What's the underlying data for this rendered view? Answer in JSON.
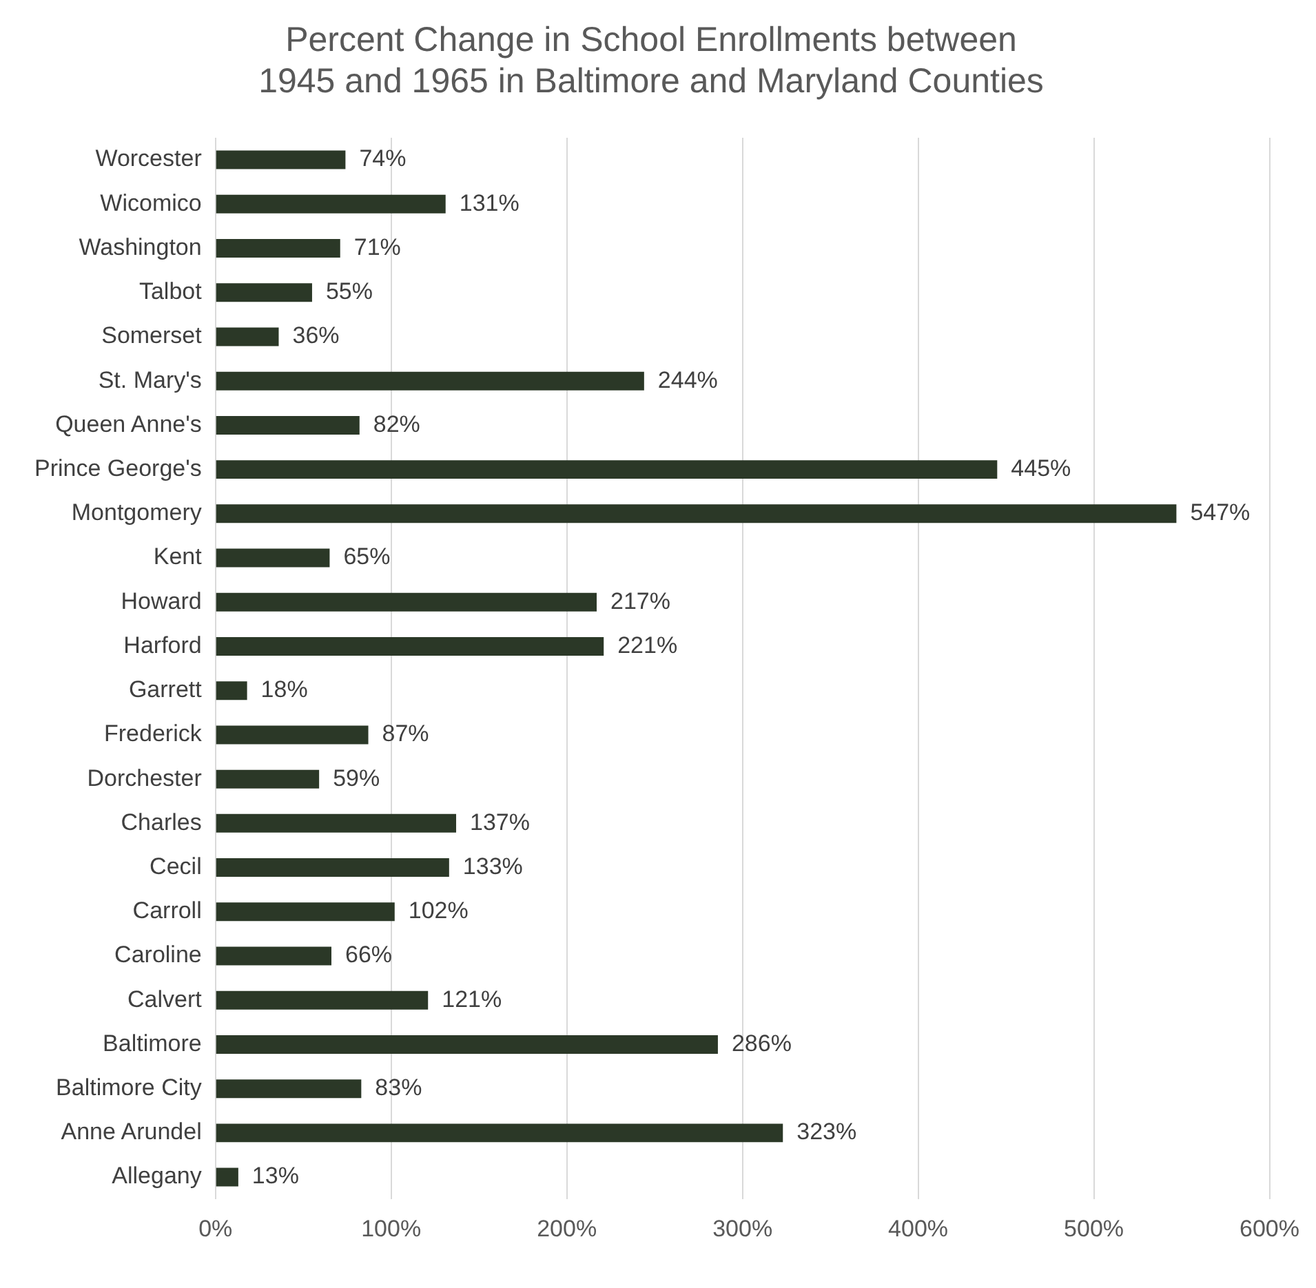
{
  "chart_data": {
    "type": "bar",
    "orientation": "horizontal",
    "title": "Percent Change in School Enrollments between 1945 and 1965 in Baltimore and Maryland Counties",
    "categories": [
      "Worcester",
      "Wicomico",
      "Washington",
      "Talbot",
      "Somerset",
      "St. Mary's",
      "Queen Anne's",
      "Prince George's",
      "Montgomery",
      "Kent",
      "Howard",
      "Harford",
      "Garrett",
      "Frederick",
      "Dorchester",
      "Charles",
      "Cecil",
      "Carroll",
      "Caroline",
      "Calvert",
      "Baltimore",
      "Baltimore City",
      "Anne Arundel",
      "Allegany"
    ],
    "values": [
      74,
      131,
      71,
      55,
      36,
      244,
      82,
      445,
      547,
      65,
      217,
      221,
      18,
      87,
      59,
      137,
      133,
      102,
      66,
      121,
      286,
      83,
      323,
      13
    ],
    "value_labels": [
      "74%",
      "131%",
      "71%",
      "55%",
      "36%",
      "244%",
      "82%",
      "445%",
      "547%",
      "65%",
      "217%",
      "221%",
      "18%",
      "87%",
      "59%",
      "137%",
      "133%",
      "102%",
      "66%",
      "121%",
      "286%",
      "83%",
      "323%",
      "13%"
    ],
    "color": "#2b3827",
    "xlim": [
      0,
      600
    ],
    "xticks": [
      {
        "value": 0,
        "label": "0%"
      },
      {
        "value": 100,
        "label": "100%"
      },
      {
        "value": 200,
        "label": "200%"
      },
      {
        "value": 300,
        "label": "300%"
      },
      {
        "value": 400,
        "label": "400%"
      },
      {
        "value": 500,
        "label": "500%"
      },
      {
        "value": 600,
        "label": "600%"
      }
    ],
    "grid": "x",
    "legend": false
  }
}
